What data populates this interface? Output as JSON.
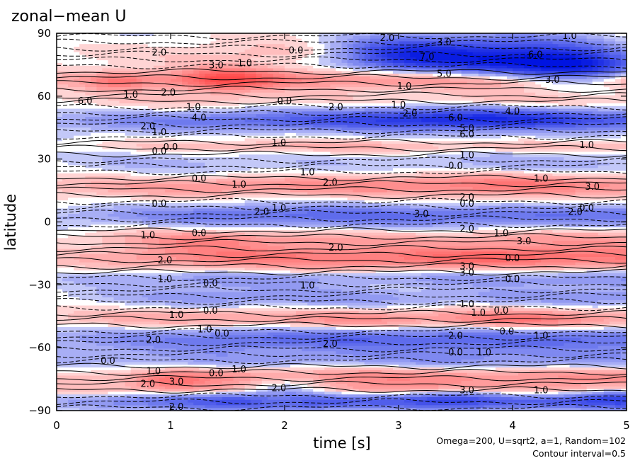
{
  "chart_data": {
    "type": "heatmap",
    "title": "zonal−mean U",
    "xlabel": "time [s]",
    "ylabel": "latitude",
    "xlim": [
      0,
      5
    ],
    "ylim": [
      -90,
      90
    ],
    "xticks": [
      "0",
      "1",
      "2",
      "3",
      "4",
      "5"
    ],
    "yticks": [
      "90",
      "60",
      "30",
      "0",
      "−30",
      "−60",
      "−90"
    ],
    "annotations": [
      "Omega=200, U=sqrt2, a=1, Random=102",
      "Contour interval=0.5"
    ],
    "colors": {
      "positive": "#ff2a2a",
      "negative": "#0018e0",
      "zero": "#ffffff"
    },
    "contour_labels": [
      {
        "text": "0.0",
        "x": 2.1,
        "y": 82
      },
      {
        "text": "2.0",
        "x": 2.9,
        "y": 88
      },
      {
        "text": "3.0",
        "x": 3.4,
        "y": 86
      },
      {
        "text": "1.0",
        "x": 4.5,
        "y": 89
      },
      {
        "text": "7.0",
        "x": 3.25,
        "y": 79
      },
      {
        "text": "6.0",
        "x": 4.2,
        "y": 80
      },
      {
        "text": "5.0",
        "x": 3.4,
        "y": 71
      },
      {
        "text": "2.0",
        "x": 0.9,
        "y": 81
      },
      {
        "text": "3.0",
        "x": 1.4,
        "y": 75
      },
      {
        "text": "1.0",
        "x": 1.65,
        "y": 76
      },
      {
        "text": "1.0",
        "x": 0.65,
        "y": 61
      },
      {
        "text": "2.0",
        "x": 0.98,
        "y": 62
      },
      {
        "text": "1.0",
        "x": 3.05,
        "y": 65
      },
      {
        "text": "3.0",
        "x": 4.35,
        "y": 68
      },
      {
        "text": "6.0",
        "x": 0.25,
        "y": 58
      },
      {
        "text": "0.0",
        "x": 2.0,
        "y": 58
      },
      {
        "text": "2.0",
        "x": 2.45,
        "y": 55
      },
      {
        "text": "1.0",
        "x": 3.0,
        "y": 56
      },
      {
        "text": "2.0",
        "x": 3.1,
        "y": 52
      },
      {
        "text": "6.0",
        "x": 3.5,
        "y": 50
      },
      {
        "text": "4.0",
        "x": 4.0,
        "y": 53
      },
      {
        "text": "1.0",
        "x": 1.2,
        "y": 55
      },
      {
        "text": "4.0",
        "x": 1.25,
        "y": 50
      },
      {
        "text": "2.0",
        "x": 0.8,
        "y": 46
      },
      {
        "text": "1.0",
        "x": 0.9,
        "y": 43
      },
      {
        "text": "5.0",
        "x": 3.6,
        "y": 45
      },
      {
        "text": "6.0",
        "x": 3.6,
        "y": 42
      },
      {
        "text": "1.0",
        "x": 1.95,
        "y": 38
      },
      {
        "text": "0.0",
        "x": 0.9,
        "y": 34
      },
      {
        "text": "0.0",
        "x": 1.0,
        "y": 36
      },
      {
        "text": "1.0",
        "x": 3.6,
        "y": 32
      },
      {
        "text": "1.0",
        "x": 4.65,
        "y": 37
      },
      {
        "text": "0.0",
        "x": 3.5,
        "y": 27
      },
      {
        "text": "1.0",
        "x": 2.2,
        "y": 24
      },
      {
        "text": "0.0",
        "x": 1.25,
        "y": 21
      },
      {
        "text": "1.0",
        "x": 1.6,
        "y": 18
      },
      {
        "text": "2.0",
        "x": 2.4,
        "y": 19
      },
      {
        "text": "1.0",
        "x": 4.25,
        "y": 21
      },
      {
        "text": "3.0",
        "x": 4.7,
        "y": 17
      },
      {
        "text": "2.0",
        "x": 3.6,
        "y": 12
      },
      {
        "text": "0.0",
        "x": 3.6,
        "y": 9
      },
      {
        "text": "0.0",
        "x": 0.9,
        "y": 9
      },
      {
        "text": "2.0",
        "x": 1.8,
        "y": 5
      },
      {
        "text": "1.0",
        "x": 1.95,
        "y": 7
      },
      {
        "text": "3.0",
        "x": 3.2,
        "y": 4
      },
      {
        "text": "2.0",
        "x": 4.55,
        "y": 5
      },
      {
        "text": "0.0",
        "x": 4.65,
        "y": 7
      },
      {
        "text": "2.0",
        "x": 3.6,
        "y": -3
      },
      {
        "text": "1.0",
        "x": 3.9,
        "y": -5
      },
      {
        "text": "3.0",
        "x": 4.1,
        "y": -9
      },
      {
        "text": "1.0",
        "x": 0.8,
        "y": -6
      },
      {
        "text": "0.0",
        "x": 1.25,
        "y": -5
      },
      {
        "text": "2.0",
        "x": 2.45,
        "y": -12
      },
      {
        "text": "2.0",
        "x": 0.95,
        "y": -18
      },
      {
        "text": "0.0",
        "x": 4.0,
        "y": -17
      },
      {
        "text": "3.0",
        "x": 3.6,
        "y": -21
      },
      {
        "text": "3.0",
        "x": 3.6,
        "y": -24
      },
      {
        "text": "1.0",
        "x": 0.95,
        "y": -27
      },
      {
        "text": "0.0",
        "x": 1.35,
        "y": -29
      },
      {
        "text": "1.0",
        "x": 2.2,
        "y": -30
      },
      {
        "text": "0.0",
        "x": 4.0,
        "y": -27
      },
      {
        "text": "1.0",
        "x": 3.6,
        "y": -39
      },
      {
        "text": "1.0",
        "x": 3.7,
        "y": -43
      },
      {
        "text": "0.0",
        "x": 3.9,
        "y": -42
      },
      {
        "text": "1.0",
        "x": 1.05,
        "y": -44
      },
      {
        "text": "0.0",
        "x": 1.35,
        "y": -42
      },
      {
        "text": "1.0",
        "x": 1.3,
        "y": -51
      },
      {
        "text": "0.0",
        "x": 1.45,
        "y": -53
      },
      {
        "text": "2.0",
        "x": 0.85,
        "y": -56
      },
      {
        "text": "2.0",
        "x": 2.4,
        "y": -58
      },
      {
        "text": "2.0",
        "x": 3.5,
        "y": -54
      },
      {
        "text": "0.0",
        "x": 3.95,
        "y": -52
      },
      {
        "text": "1.0",
        "x": 4.25,
        "y": -54
      },
      {
        "text": "0.0",
        "x": 0.45,
        "y": -66
      },
      {
        "text": "0.0",
        "x": 3.5,
        "y": -62
      },
      {
        "text": "1.0",
        "x": 3.75,
        "y": -62
      },
      {
        "text": "1.0",
        "x": 0.85,
        "y": -71
      },
      {
        "text": "0.0",
        "x": 1.4,
        "y": -72
      },
      {
        "text": "2.0",
        "x": 0.8,
        "y": -77
      },
      {
        "text": "3.0",
        "x": 1.05,
        "y": -76
      },
      {
        "text": "2.0",
        "x": 1.95,
        "y": -79
      },
      {
        "text": "1.0",
        "x": 1.6,
        "y": -70
      },
      {
        "text": "3.0",
        "x": 3.6,
        "y": -80
      },
      {
        "text": "1.0",
        "x": 4.25,
        "y": -80
      },
      {
        "text": "2.0",
        "x": 1.05,
        "y": -88
      }
    ]
  }
}
